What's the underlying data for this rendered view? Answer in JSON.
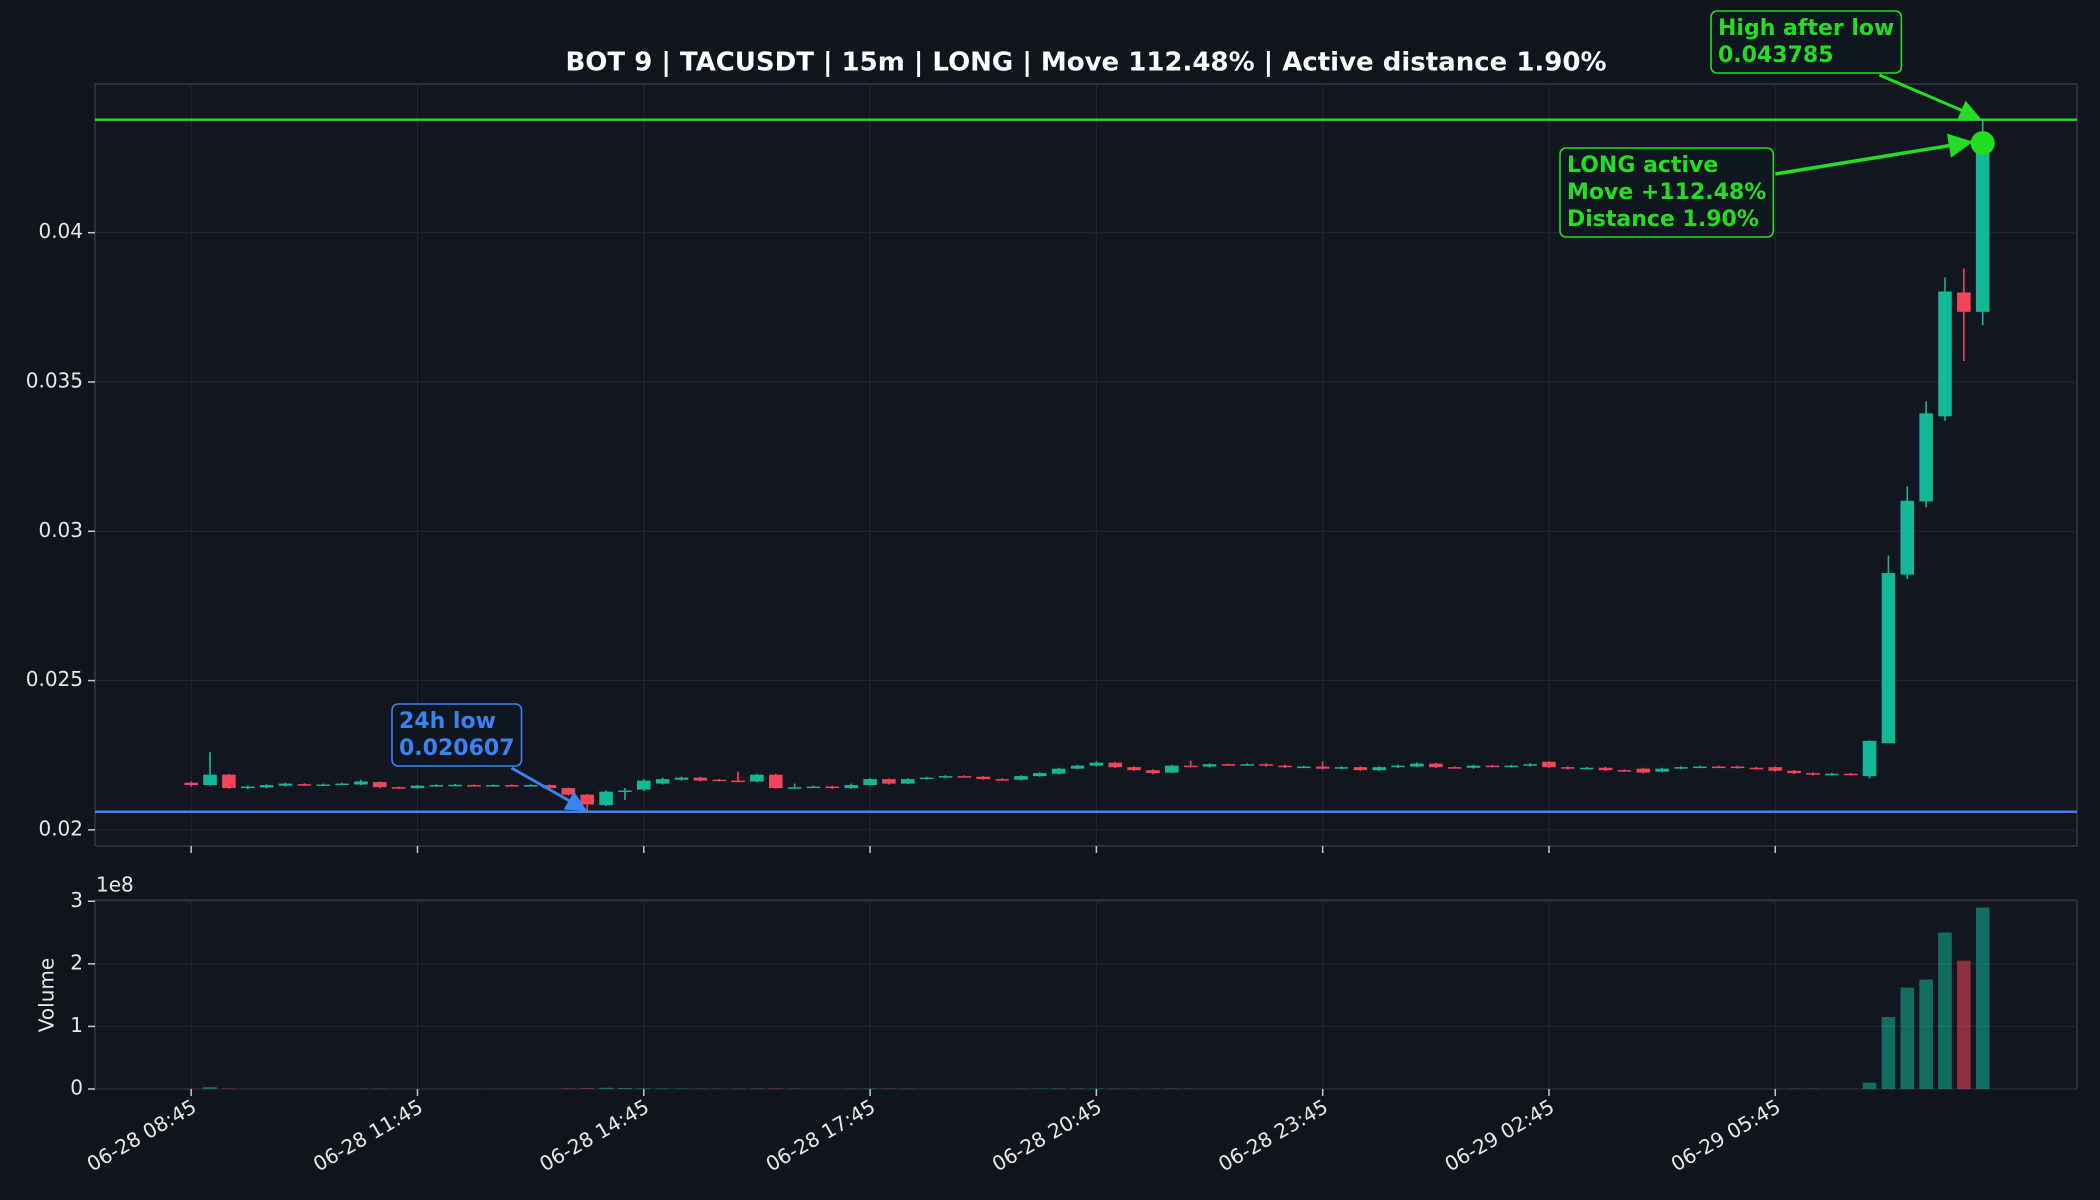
{
  "chart_data": [
    {
      "type": "candlestick",
      "title": "BOT 9 | TACUSDT | 15m | LONG | Move 112.48% | Active distance 1.90%",
      "x": [
        "06-28 08:45",
        "06-28 09:00",
        "06-28 09:15",
        "06-28 09:30",
        "06-28 09:45",
        "06-28 10:00",
        "06-28 10:15",
        "06-28 10:30",
        "06-28 10:45",
        "06-28 11:00",
        "06-28 11:15",
        "06-28 11:30",
        "06-28 11:45",
        "06-28 12:00",
        "06-28 12:15",
        "06-28 12:30",
        "06-28 12:45",
        "06-28 13:00",
        "06-28 13:15",
        "06-28 13:30",
        "06-28 13:45",
        "06-28 14:00",
        "06-28 14:15",
        "06-28 14:30",
        "06-28 14:45",
        "06-28 15:00",
        "06-28 15:15",
        "06-28 15:30",
        "06-28 15:45",
        "06-28 16:00",
        "06-28 16:15",
        "06-28 16:30",
        "06-28 16:45",
        "06-28 17:00",
        "06-28 17:15",
        "06-28 17:30",
        "06-28 17:45",
        "06-28 18:00",
        "06-28 18:15",
        "06-28 18:30",
        "06-28 18:45",
        "06-28 19:00",
        "06-28 19:15",
        "06-28 19:30",
        "06-28 19:45",
        "06-28 20:00",
        "06-28 20:15",
        "06-28 20:30",
        "06-28 20:45",
        "06-28 21:00",
        "06-28 21:15",
        "06-28 21:30",
        "06-28 21:45",
        "06-28 22:00",
        "06-28 22:15",
        "06-28 22:30",
        "06-28 22:45",
        "06-28 23:00",
        "06-28 23:15",
        "06-28 23:30",
        "06-28 23:45",
        "06-29 00:00",
        "06-29 00:15",
        "06-29 00:30",
        "06-29 00:45",
        "06-29 01:00",
        "06-29 01:15",
        "06-29 01:30",
        "06-29 01:45",
        "06-29 02:00",
        "06-29 02:15",
        "06-29 02:30",
        "06-29 02:45",
        "06-29 03:00",
        "06-29 03:15",
        "06-29 03:30",
        "06-29 03:45",
        "06-29 04:00",
        "06-29 04:15",
        "06-29 04:30",
        "06-29 04:45",
        "06-29 05:00",
        "06-29 05:15",
        "06-29 05:30",
        "06-29 05:45",
        "06-29 06:00",
        "06-29 06:15",
        "06-29 06:30",
        "06-29 06:45",
        "06-29 07:00",
        "06-29 07:15",
        "06-29 07:30",
        "06-29 07:45",
        "06-29 08:00",
        "06-29 08:15",
        "06-29 08:30"
      ],
      "open": [
        0.02158,
        0.0215,
        0.02185,
        0.0214,
        0.02142,
        0.02148,
        0.02153,
        0.0215,
        0.02152,
        0.02152,
        0.0216,
        0.02143,
        0.0214,
        0.02146,
        0.0215,
        0.0215,
        0.02148,
        0.0215,
        0.02148,
        0.0215,
        0.0214,
        0.02118,
        0.02083,
        0.02128,
        0.02135,
        0.02155,
        0.02168,
        0.02175,
        0.02168,
        0.02165,
        0.02162,
        0.02185,
        0.0214,
        0.02143,
        0.02145,
        0.0214,
        0.0215,
        0.0217,
        0.02155,
        0.0217,
        0.02175,
        0.0218,
        0.02178,
        0.0217,
        0.02168,
        0.0218,
        0.02188,
        0.02205,
        0.02215,
        0.02225,
        0.0221,
        0.022,
        0.02192,
        0.02215,
        0.02212,
        0.0222,
        0.02218,
        0.0222,
        0.02215,
        0.0221,
        0.02212,
        0.02205,
        0.0221,
        0.022,
        0.0221,
        0.02212,
        0.02222,
        0.0221,
        0.02208,
        0.02215,
        0.02212,
        0.02215,
        0.02228,
        0.0221,
        0.02205,
        0.02208,
        0.022,
        0.02205,
        0.02195,
        0.02205,
        0.0221,
        0.02212,
        0.02212,
        0.02208,
        0.0221,
        0.02198,
        0.0219,
        0.02185,
        0.02188,
        0.0218,
        0.0229,
        0.02855,
        0.031,
        0.03385,
        0.038,
        0.03735
      ],
      "high": [
        0.02162,
        0.0226,
        0.02188,
        0.02148,
        0.02153,
        0.02158,
        0.02156,
        0.02155,
        0.02158,
        0.02168,
        0.02162,
        0.02145,
        0.0215,
        0.02153,
        0.02154,
        0.02152,
        0.02152,
        0.02152,
        0.02153,
        0.02152,
        0.02142,
        0.0212,
        0.02132,
        0.0214,
        0.0217,
        0.02175,
        0.02178,
        0.02178,
        0.0217,
        0.02195,
        0.02188,
        0.02188,
        0.02155,
        0.02148,
        0.02148,
        0.02155,
        0.02173,
        0.02172,
        0.02173,
        0.02178,
        0.02183,
        0.02183,
        0.0218,
        0.02173,
        0.02183,
        0.02193,
        0.02208,
        0.02218,
        0.0223,
        0.02228,
        0.02213,
        0.02203,
        0.02218,
        0.02232,
        0.02223,
        0.02222,
        0.02223,
        0.02223,
        0.02218,
        0.02215,
        0.0223,
        0.02213,
        0.02213,
        0.02213,
        0.02218,
        0.02226,
        0.02225,
        0.02213,
        0.02218,
        0.02218,
        0.02218,
        0.02223,
        0.0223,
        0.02213,
        0.02211,
        0.02211,
        0.02203,
        0.02208,
        0.02208,
        0.02213,
        0.02215,
        0.02215,
        0.02215,
        0.02211,
        0.02213,
        0.022,
        0.02193,
        0.02191,
        0.02191,
        0.023,
        0.02919,
        0.0315,
        0.03435,
        0.0385,
        0.0388,
        0.043785
      ],
      "low": [
        0.02145,
        0.02148,
        0.02138,
        0.02137,
        0.0214,
        0.02145,
        0.02147,
        0.02148,
        0.0215,
        0.0215,
        0.0214,
        0.02137,
        0.02138,
        0.02144,
        0.02148,
        0.02146,
        0.02146,
        0.02146,
        0.02146,
        0.02138,
        0.02115,
        0.020607,
        0.0208,
        0.021,
        0.0213,
        0.02152,
        0.02165,
        0.02162,
        0.02162,
        0.0216,
        0.0216,
        0.02138,
        0.02138,
        0.02141,
        0.02137,
        0.02138,
        0.02148,
        0.02152,
        0.02153,
        0.02168,
        0.02173,
        0.02176,
        0.02168,
        0.02165,
        0.02166,
        0.02178,
        0.02186,
        0.02203,
        0.02212,
        0.02207,
        0.02197,
        0.02186,
        0.0219,
        0.02209,
        0.02209,
        0.02215,
        0.02215,
        0.02212,
        0.02207,
        0.02207,
        0.02202,
        0.02203,
        0.02197,
        0.02197,
        0.02207,
        0.0221,
        0.02207,
        0.02205,
        0.02205,
        0.02209,
        0.02209,
        0.02212,
        0.02207,
        0.02202,
        0.02202,
        0.02197,
        0.02195,
        0.02189,
        0.02192,
        0.02203,
        0.02207,
        0.02207,
        0.02205,
        0.02202,
        0.02195,
        0.02187,
        0.02182,
        0.02182,
        0.02182,
        0.02172,
        0.0229,
        0.0284,
        0.0308,
        0.0337,
        0.0357,
        0.0369
      ],
      "close": [
        0.0215,
        0.02185,
        0.0214,
        0.02145,
        0.0215,
        0.02155,
        0.0215,
        0.02152,
        0.02155,
        0.02162,
        0.02143,
        0.0214,
        0.02148,
        0.0215,
        0.02151,
        0.02148,
        0.0215,
        0.02148,
        0.0215,
        0.0214,
        0.02118,
        0.02085,
        0.02128,
        0.02132,
        0.02165,
        0.0217,
        0.02175,
        0.02165,
        0.02165,
        0.02162,
        0.02185,
        0.0214,
        0.02143,
        0.02145,
        0.0214,
        0.0215,
        0.0217,
        0.02155,
        0.0217,
        0.02175,
        0.0218,
        0.02178,
        0.0217,
        0.02168,
        0.0218,
        0.0219,
        0.02205,
        0.02215,
        0.02225,
        0.0221,
        0.022,
        0.0219,
        0.02215,
        0.02212,
        0.0222,
        0.02218,
        0.0222,
        0.02215,
        0.0221,
        0.02212,
        0.02205,
        0.0221,
        0.022,
        0.0221,
        0.02215,
        0.02222,
        0.0221,
        0.02208,
        0.02215,
        0.02212,
        0.02215,
        0.0222,
        0.0221,
        0.02205,
        0.02208,
        0.022,
        0.02198,
        0.02192,
        0.02205,
        0.0221,
        0.02212,
        0.0221,
        0.02208,
        0.02205,
        0.02198,
        0.0219,
        0.02185,
        0.02188,
        0.02185,
        0.02298,
        0.0286,
        0.03102,
        0.03395,
        0.03803,
        0.03735,
        0.043
      ],
      "up_color": "#13b894",
      "down_color": "#f2455c",
      "xlim": [
        -5.1,
        100
      ],
      "ylim": [
        0.01946,
        0.04498
      ],
      "yticks": [
        0.02,
        0.025,
        0.03,
        0.035,
        0.04
      ],
      "xticks": [
        "06-28 08:45",
        "06-28 11:45",
        "06-28 14:45",
        "06-28 17:45",
        "06-28 20:45",
        "06-28 23:45",
        "06-29 02:45",
        "06-29 05:45"
      ],
      "grid": true,
      "hlines": [
        {
          "label": "High after low",
          "value": 0.043785,
          "color": "#22dd22"
        },
        {
          "label": "24h low",
          "value": 0.020607,
          "color": "#3b82f6"
        }
      ],
      "signal": {
        "lines": [
          "LONG active",
          "Move +112.48%",
          "Distance 1.90%"
        ],
        "color": "#22dd22"
      }
    },
    {
      "type": "bar",
      "ylabel": "Volume",
      "offset_label": "1e8",
      "values": [
        400000,
        3000000,
        600000,
        300000,
        300000,
        200000,
        200000,
        200000,
        300000,
        400000,
        500000,
        300000,
        200000,
        200000,
        150000,
        150000,
        150000,
        150000,
        150000,
        300000,
        800000,
        1200000,
        2000000,
        1500000,
        900000,
        600000,
        500000,
        400000,
        400000,
        500000,
        700000,
        800000,
        500000,
        300000,
        300000,
        400000,
        600000,
        500000,
        400000,
        300000,
        300000,
        300000,
        300000,
        300000,
        400000,
        500000,
        700000,
        600000,
        600000,
        500000,
        400000,
        400000,
        500000,
        400000,
        300000,
        300000,
        200000,
        200000,
        200000,
        200000,
        300000,
        200000,
        200000,
        200000,
        200000,
        300000,
        300000,
        200000,
        200000,
        200000,
        200000,
        200000,
        300000,
        300000,
        200000,
        200000,
        300000,
        300000,
        300000,
        200000,
        200000,
        200000,
        200000,
        200000,
        300000,
        400000,
        400000,
        300000,
        300000,
        10000000,
        115000000,
        162000000,
        175000000,
        250000000,
        205000000,
        290000000
      ],
      "ylim": [
        0,
        302000000
      ],
      "yticks": [
        0,
        {
          "value": 100000000,
          "label": "1"
        },
        {
          "value": 200000000,
          "label": "2"
        },
        {
          "value": 300000000,
          "label": "3"
        }
      ],
      "grid": true
    }
  ]
}
